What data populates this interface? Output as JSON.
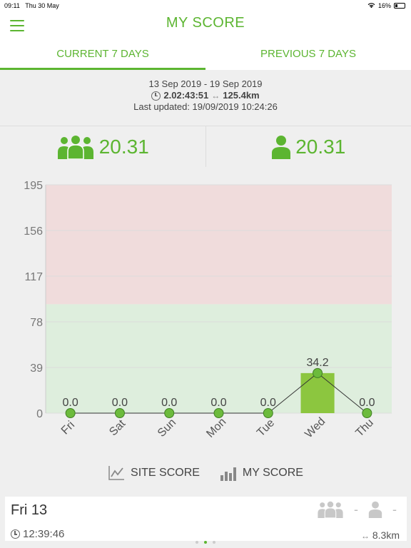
{
  "status": {
    "time": "09:11",
    "date": "Thu 30 May",
    "battery": "16%"
  },
  "header": {
    "title": "MY SCORE"
  },
  "tabs": [
    {
      "label": "CURRENT 7 DAYS",
      "active": true
    },
    {
      "label": "PREVIOUS 7 DAYS",
      "active": false
    }
  ],
  "summary": {
    "range": "13 Sep 2019 - 19 Sep 2019",
    "duration": "2.02:43:51",
    "distance": "125.4km",
    "updated": "Last updated: 19/09/2019 10:24:26"
  },
  "scores": {
    "site": "20.31",
    "mine": "20.31"
  },
  "chart_data": {
    "type": "bar",
    "categories": [
      "Fri",
      "Sat",
      "Sun",
      "Mon",
      "Tue",
      "Wed",
      "Thu"
    ],
    "values": [
      0.0,
      0.0,
      0.0,
      0.0,
      0.0,
      34.2,
      0.0
    ],
    "value_labels": [
      "0.0",
      "0.0",
      "0.0",
      "0.0",
      "0.0",
      "34.2",
      "0.0"
    ],
    "yticks": [
      "195",
      "156",
      "117",
      "78",
      "39",
      "0"
    ],
    "ylim": [
      0,
      195
    ],
    "bands": {
      "green_max": 93,
      "red_max": 195
    },
    "colors": {
      "bar": "#8cc63f",
      "green_band": "#deeedd",
      "red_band": "#f0dcdc",
      "point": "#6cbb3c"
    }
  },
  "legend": {
    "site": "SITE SCORE",
    "mine": "MY SCORE"
  },
  "day": {
    "title": "Fri 13",
    "dash1": "-",
    "dash2": "-",
    "time": "12:39:46",
    "distance": "8.3km"
  },
  "colors": {
    "accent": "#5cb531"
  }
}
